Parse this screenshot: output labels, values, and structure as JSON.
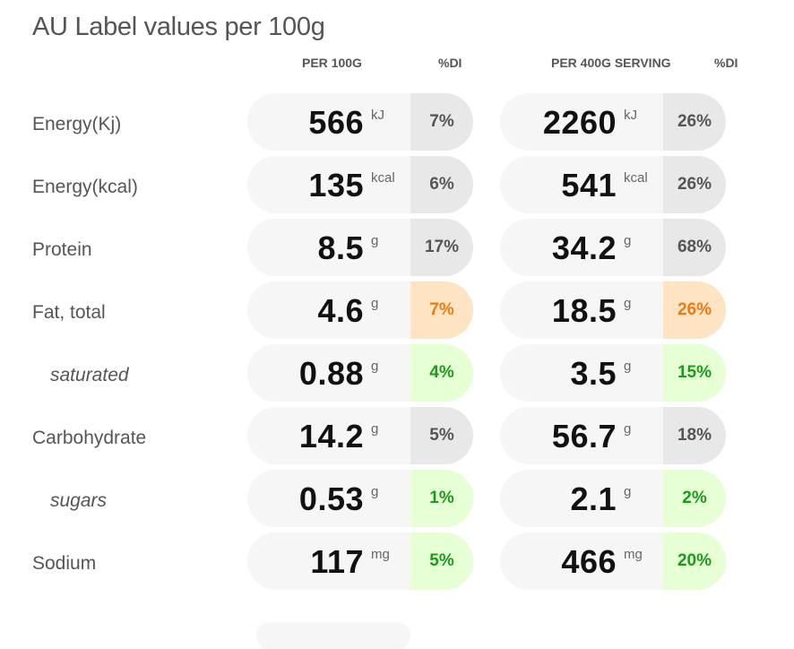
{
  "title": "AU Label values per 100g",
  "headers": {
    "per100": "PER 100G",
    "di1": "%DI",
    "perServing": "PER 400G SERVING",
    "di2": "%DI"
  },
  "rows": [
    {
      "label": "Energy(Kj)",
      "sub": false,
      "v1": "566",
      "u1": "kJ",
      "p1": "7%",
      "c1": "grey",
      "v2": "2260",
      "u2": "kJ",
      "p2": "26%",
      "c2": "grey"
    },
    {
      "label": "Energy(kcal)",
      "sub": false,
      "v1": "135",
      "u1": "kcal",
      "p1": "6%",
      "c1": "grey",
      "v2": "541",
      "u2": "kcal",
      "p2": "26%",
      "c2": "grey"
    },
    {
      "label": "Protein",
      "sub": false,
      "v1": "8.5",
      "u1": "g",
      "p1": "17%",
      "c1": "grey",
      "v2": "34.2",
      "u2": "g",
      "p2": "68%",
      "c2": "grey"
    },
    {
      "label": "Fat, total",
      "sub": false,
      "v1": "4.6",
      "u1": "g",
      "p1": "7%",
      "c1": "orange",
      "v2": "18.5",
      "u2": "g",
      "p2": "26%",
      "c2": "orange"
    },
    {
      "label": "saturated",
      "sub": true,
      "v1": "0.88",
      "u1": "g",
      "p1": "4%",
      "c1": "green",
      "v2": "3.5",
      "u2": "g",
      "p2": "15%",
      "c2": "green"
    },
    {
      "label": "Carbohydrate",
      "sub": false,
      "v1": "14.2",
      "u1": "g",
      "p1": "5%",
      "c1": "grey",
      "v2": "56.7",
      "u2": "g",
      "p2": "18%",
      "c2": "grey"
    },
    {
      "label": "sugars",
      "sub": true,
      "v1": "0.53",
      "u1": "g",
      "p1": "1%",
      "c1": "green",
      "v2": "2.1",
      "u2": "g",
      "p2": "2%",
      "c2": "green"
    },
    {
      "label": "Sodium",
      "sub": false,
      "v1": "117",
      "u1": "mg",
      "p1": "5%",
      "c1": "green",
      "v2": "466",
      "u2": "mg",
      "p2": "20%",
      "c2": "green"
    }
  ],
  "colors": {
    "grey_badge": "#e8e8e8",
    "orange_badge": "#ffe4c4",
    "orange_text": "#f07a10",
    "green_badge": "#e6ffd4",
    "green_text": "#1c9a1c"
  }
}
